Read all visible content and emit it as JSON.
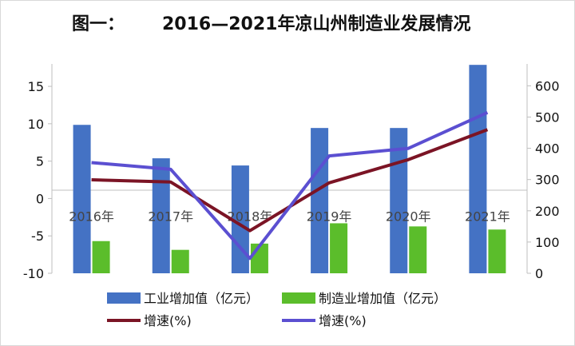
{
  "chart_data": {
    "type": "bar",
    "title_prefix": "图一：",
    "title": "2016—2021年凉山州制造业发展情况",
    "categories": [
      "2016年",
      "2017年",
      "2018年",
      "2019年",
      "2020年",
      "2021年"
    ],
    "left_axis": {
      "min": -10,
      "max": 18,
      "ticks": [
        "-10",
        "-5",
        "0",
        "5",
        "10",
        "15"
      ],
      "tick_values": [
        -10,
        -5,
        0,
        5,
        10,
        15
      ]
    },
    "right_axis": {
      "min": 0,
      "max": 670,
      "ticks": [
        "0",
        "100",
        "200",
        "300",
        "400",
        "500",
        "600"
      ],
      "tick_values": [
        0,
        100,
        200,
        300,
        400,
        500,
        600
      ]
    },
    "series": [
      {
        "name": "工业增加值（亿元）",
        "type": "bar",
        "axis": "right",
        "color": "#4472C4",
        "values": [
          475,
          368,
          345,
          465,
          465,
          667
        ]
      },
      {
        "name": "制造业增加值（亿元）",
        "type": "bar",
        "axis": "right",
        "color": "#5BBD2B",
        "values": [
          103,
          75,
          95,
          160,
          150,
          140
        ]
      },
      {
        "name": "增速(%)",
        "type": "line",
        "axis": "left",
        "color": "#7B1425",
        "values": [
          2.5,
          2.2,
          -4.3,
          2.1,
          5.2,
          9.2
        ]
      },
      {
        "name": "增速(%)",
        "type": "line",
        "axis": "left",
        "color": "#5B4FD1",
        "values": [
          4.8,
          3.9,
          -8.0,
          5.7,
          6.7,
          11.5
        ]
      }
    ],
    "legend_position": "bottom",
    "grid": false
  }
}
